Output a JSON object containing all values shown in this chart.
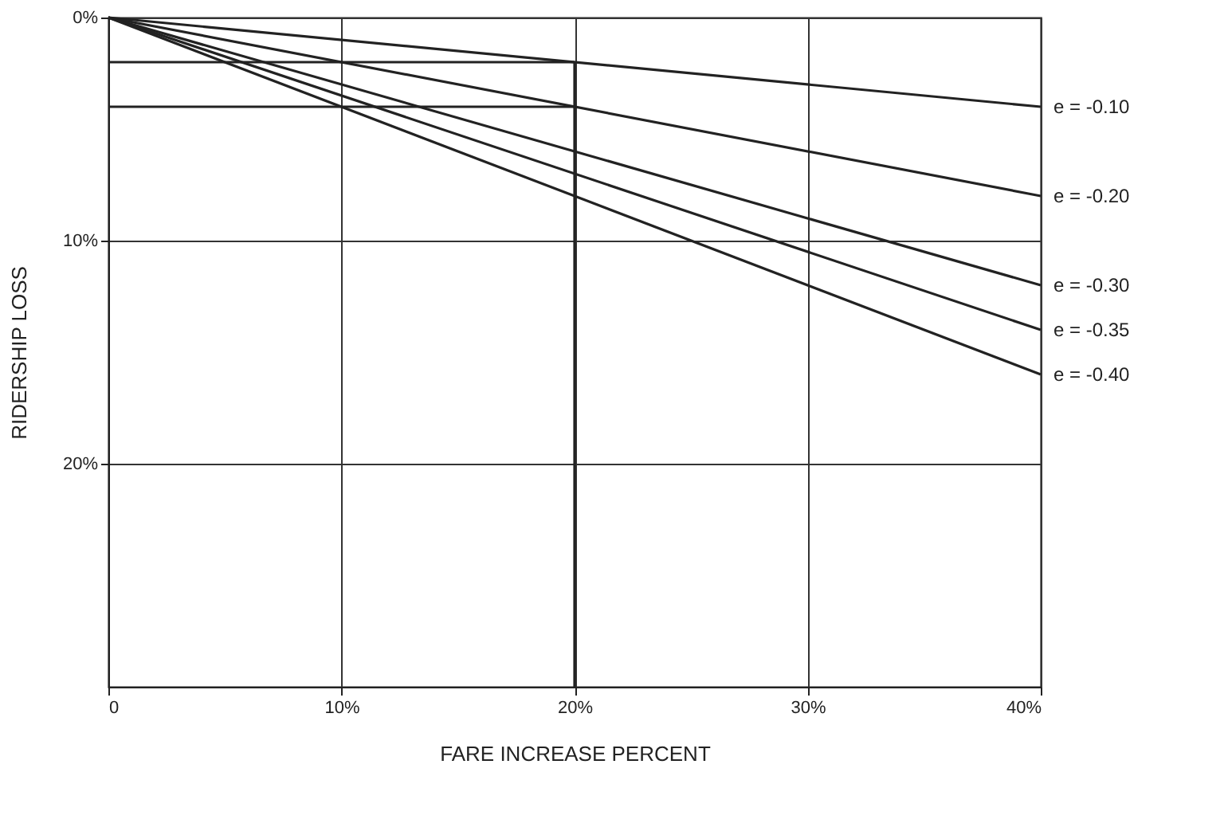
{
  "chart_data": {
    "type": "line",
    "xlabel": "FARE INCREASE PERCENT",
    "ylabel": "RIDERSHIP LOSS",
    "xlim": [
      0,
      40
    ],
    "xticks": [
      {
        "value": 0,
        "label": "0"
      },
      {
        "value": 10,
        "label": "10%"
      },
      {
        "value": 20,
        "label": "20%"
      },
      {
        "value": 30,
        "label": "30%"
      },
      {
        "value": 40,
        "label": "40%"
      }
    ],
    "ylim": [
      30,
      0
    ],
    "yticks": [
      {
        "value": 0,
        "label": "0%"
      },
      {
        "value": 10,
        "label": "10%"
      },
      {
        "value": 20,
        "label": "20%"
      }
    ],
    "grid": true,
    "line_style": "solid",
    "series": [
      {
        "name": "e = -0.10",
        "color": "#222222",
        "x": [
          0,
          40
        ],
        "values": [
          0,
          4
        ]
      },
      {
        "name": "e = -0.20",
        "color": "#222222",
        "x": [
          0,
          40
        ],
        "values": [
          0,
          8
        ]
      },
      {
        "name": "e = -0.30",
        "color": "#222222",
        "x": [
          0,
          40
        ],
        "values": [
          0,
          12
        ]
      },
      {
        "name": "e = -0.35",
        "color": "#222222",
        "x": [
          0,
          40
        ],
        "values": [
          0,
          14
        ]
      },
      {
        "name": "e = -0.40",
        "color": "#222222",
        "x": [
          0,
          40
        ],
        "values": [
          0,
          16
        ]
      },
      {
        "color": "#222222",
        "x": [
          20,
          20
        ],
        "values": [
          30,
          2
        ]
      },
      {
        "color": "#222222",
        "x": [
          20,
          0
        ],
        "values": [
          2,
          2
        ]
      },
      {
        "color": "#222222",
        "x": [
          20,
          0
        ],
        "values": [
          4,
          4
        ]
      }
    ]
  }
}
